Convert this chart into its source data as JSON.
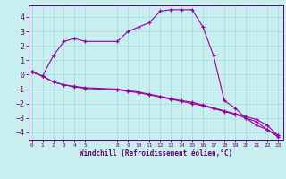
{
  "background_color": "#c8eef0",
  "grid_color": "#aadddd",
  "line_color": "#990099",
  "marker": "+",
  "xlabel": "Windchill (Refroidissement éolien,°C)",
  "xlabel_color": "#660066",
  "tick_color": "#660066",
  "ylim": [
    -4.5,
    4.8
  ],
  "yticks": [
    -4,
    -3,
    -2,
    -1,
    0,
    1,
    2,
    3,
    4
  ],
  "xticks": [
    0,
    1,
    2,
    3,
    4,
    5,
    8,
    9,
    10,
    11,
    12,
    13,
    14,
    15,
    16,
    17,
    18,
    19,
    20,
    21,
    22,
    23
  ],
  "xlim": [
    -0.3,
    23.5
  ],
  "curve1_x": [
    0,
    1,
    2,
    3,
    4,
    5,
    8,
    9,
    10,
    11,
    12,
    13,
    14,
    15,
    16,
    17,
    18,
    19,
    20,
    21,
    22,
    23
  ],
  "curve1_y": [
    0.2,
    -0.1,
    -0.5,
    -0.7,
    -0.8,
    -0.9,
    -1.0,
    -1.1,
    -1.2,
    -1.35,
    -1.5,
    -1.65,
    -1.8,
    -1.9,
    -2.1,
    -2.3,
    -2.5,
    -2.7,
    -2.9,
    -3.1,
    -3.5,
    -4.2
  ],
  "curve2_x": [
    0,
    1,
    2,
    3,
    4,
    5,
    8,
    9,
    10,
    11,
    12,
    13,
    14,
    15,
    16,
    17,
    18,
    19,
    20,
    21,
    22,
    23
  ],
  "curve2_y": [
    0.2,
    -0.1,
    -0.5,
    -0.7,
    -0.85,
    -0.95,
    -1.05,
    -1.15,
    -1.25,
    -1.4,
    -1.55,
    -1.7,
    -1.85,
    -2.0,
    -2.15,
    -2.35,
    -2.55,
    -2.75,
    -3.0,
    -3.25,
    -3.8,
    -4.3
  ],
  "curve3_x": [
    0,
    1,
    2,
    3,
    4,
    5,
    8,
    9,
    10,
    11,
    12,
    13,
    14,
    15,
    16,
    17,
    18,
    19,
    20,
    21,
    22,
    23
  ],
  "curve3_y": [
    0.2,
    -0.1,
    1.3,
    2.3,
    2.5,
    2.3,
    2.3,
    3.0,
    3.3,
    3.6,
    4.4,
    4.5,
    4.5,
    4.5,
    3.3,
    1.3,
    -1.8,
    -2.3,
    -3.0,
    -3.5,
    -3.8,
    -4.2
  ]
}
